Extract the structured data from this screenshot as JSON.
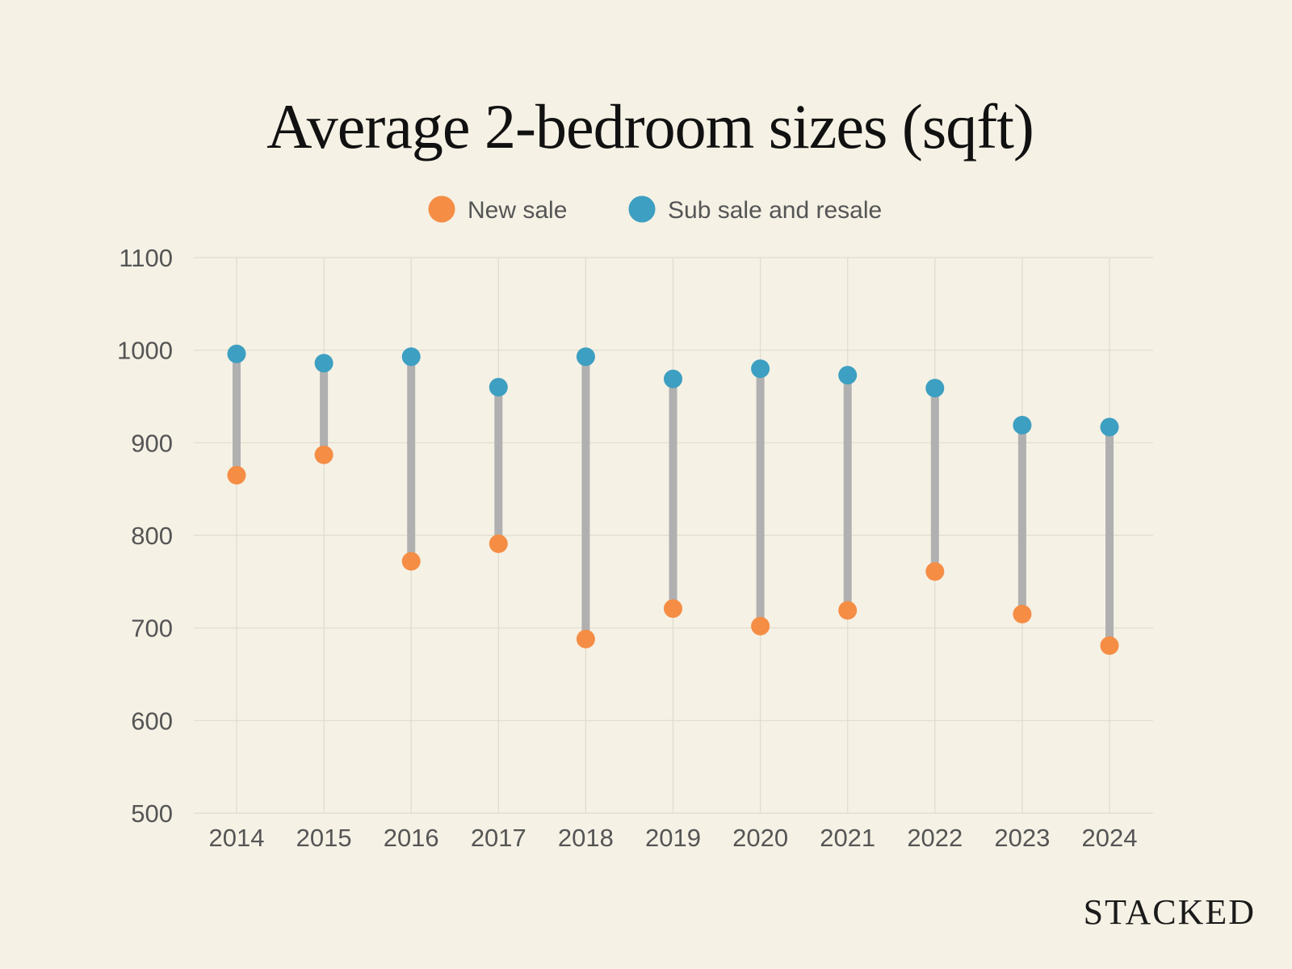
{
  "chart_data": {
    "type": "dumbbell",
    "title": "Average 2-bedroom sizes (sqft)",
    "xlabel": "",
    "ylabel": "",
    "ylim": [
      500,
      1100
    ],
    "yticks": [
      500,
      600,
      700,
      800,
      900,
      1000,
      1100
    ],
    "grid": true,
    "legend_position": "top-center",
    "categories": [
      "2014",
      "2015",
      "2016",
      "2017",
      "2018",
      "2019",
      "2020",
      "2021",
      "2022",
      "2023",
      "2024"
    ],
    "series": [
      {
        "name": "New sale",
        "color": "#f58d45",
        "values": [
          865,
          887,
          772,
          791,
          688,
          721,
          702,
          719,
          761,
          715,
          681
        ]
      },
      {
        "name": "Sub sale and resale",
        "color": "#3d9fc1",
        "values": [
          996,
          986,
          993,
          960,
          993,
          969,
          980,
          973,
          959,
          919,
          917
        ]
      }
    ],
    "connector_color": "#b0b0b0"
  },
  "brand": "STACKED"
}
